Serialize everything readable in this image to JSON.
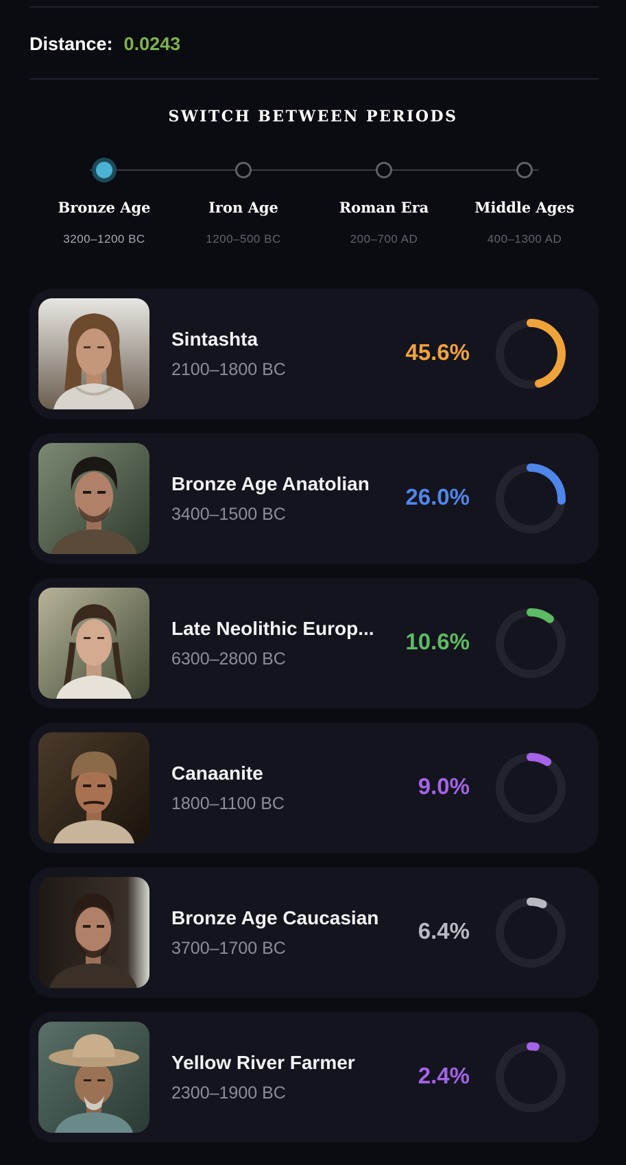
{
  "distance": {
    "label": "Distance:",
    "value": "0.0243",
    "color": "#7db44a"
  },
  "periods": {
    "title": "SWITCH BETWEEN PERIODS",
    "active_index": 0,
    "items": [
      {
        "name": "Bronze Age",
        "range": "3200–1200 BC"
      },
      {
        "name": "Iron Age",
        "range": "1200–500 BC"
      },
      {
        "name": "Roman Era",
        "range": "200–700 AD"
      },
      {
        "name": "Middle Ages",
        "range": "400–1300 AD"
      }
    ]
  },
  "populations": [
    {
      "name": "Sintashta",
      "range": "2100–1800 BC",
      "percent": "45.6%",
      "value": 45.6,
      "color": "#f0a33a",
      "portrait": "long-haired-man-portrait"
    },
    {
      "name": "Bronze Age Anatolian",
      "range": "3400–1500 BC",
      "percent": "26.0%",
      "value": 26.0,
      "color": "#4f86ea",
      "portrait": "dark-haired-man-portrait"
    },
    {
      "name": "Late Neolithic Europ...",
      "range": "6300–2800 BC",
      "percent": "10.6%",
      "value": 10.6,
      "color": "#5dbb63",
      "portrait": "braided-woman-portrait"
    },
    {
      "name": "Canaanite",
      "range": "1800–1100 BC",
      "percent": "9.0%",
      "value": 9.0,
      "color": "#a463e8",
      "portrait": "capped-man-portrait"
    },
    {
      "name": "Bronze Age Caucasian",
      "range": "3700–1700 BC",
      "percent": "6.4%",
      "value": 6.4,
      "color": "#b9b9c2",
      "portrait": "bearded-man-portrait"
    },
    {
      "name": "Yellow River Farmer",
      "range": "2300–1900 BC",
      "percent": "2.4%",
      "value": 2.4,
      "color": "#a463e8",
      "portrait": "elderly-man-hat-portrait"
    }
  ]
}
